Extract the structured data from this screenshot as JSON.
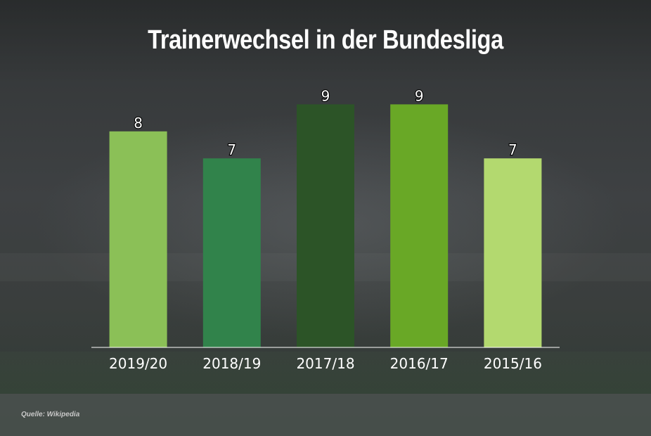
{
  "chart_data": {
    "type": "bar",
    "title": "Trainerwechsel in der Bundesliga",
    "categories": [
      "2019/20",
      "2018/19",
      "2017/18",
      "2016/17",
      "2015/16"
    ],
    "values": [
      8,
      7,
      9,
      9,
      7
    ],
    "colors": [
      "#8bc057",
      "#31834b",
      "#2c5427",
      "#69a826",
      "#b3d96f"
    ],
    "ylim": [
      0,
      9.5
    ],
    "grid": false,
    "legend": "none",
    "data_labels": true
  },
  "footer": {
    "source": "Quelle: Wikipedia"
  }
}
